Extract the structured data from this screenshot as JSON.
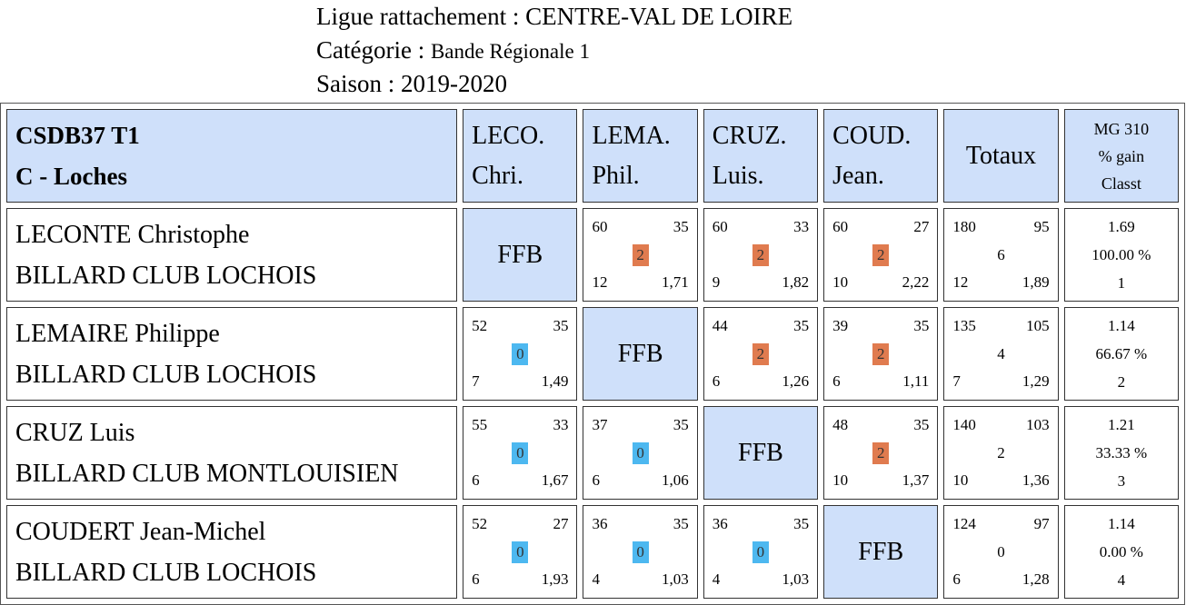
{
  "header": {
    "ligue": "Ligue rattachement : CENTRE-VAL DE LOIRE",
    "categorie_label": "Catégorie : ",
    "categorie_value": "Bande Régionale 1",
    "saison": "Saison : 2019-2020"
  },
  "table": {
    "team_line1": "CSDB37 T1",
    "team_line2": "C - Loches",
    "columns": [
      {
        "line1": "LECO.",
        "line2": "Chri."
      },
      {
        "line1": "LEMA.",
        "line2": "Phil."
      },
      {
        "line1": "CRUZ.",
        "line2": "Luis."
      },
      {
        "line1": "COUD.",
        "line2": "Jean."
      }
    ],
    "totaux_label": "Totaux",
    "mg_header": [
      "MG 310",
      "% gain",
      "Classt"
    ],
    "ffb_label": "FFB",
    "rows": [
      {
        "name": "LECONTE Christophe",
        "club": "BILLARD CLUB LOCHOIS",
        "cells": [
          null,
          {
            "tl": "60",
            "tr": "35",
            "mid": "2",
            "bl": "12",
            "br": "1,71"
          },
          {
            "tl": "60",
            "tr": "33",
            "mid": "2",
            "bl": "9",
            "br": "1,82"
          },
          {
            "tl": "60",
            "tr": "27",
            "mid": "2",
            "bl": "10",
            "br": "2,22"
          }
        ],
        "total": {
          "tl": "180",
          "tr": "95",
          "mid": "6",
          "bl": "12",
          "br": "1,89"
        },
        "mg": [
          "1.69",
          "100.00 %",
          "1"
        ]
      },
      {
        "name": "LEMAIRE Philippe",
        "club": "BILLARD CLUB LOCHOIS",
        "cells": [
          {
            "tl": "52",
            "tr": "35",
            "mid": "0",
            "bl": "7",
            "br": "1,49"
          },
          null,
          {
            "tl": "44",
            "tr": "35",
            "mid": "2",
            "bl": "6",
            "br": "1,26"
          },
          {
            "tl": "39",
            "tr": "35",
            "mid": "2",
            "bl": "6",
            "br": "1,11"
          }
        ],
        "total": {
          "tl": "135",
          "tr": "105",
          "mid": "4",
          "bl": "7",
          "br": "1,29"
        },
        "mg": [
          "1.14",
          "66.67 %",
          "2"
        ]
      },
      {
        "name": "CRUZ Luis",
        "club": "BILLARD CLUB MONTLOUISIEN",
        "cells": [
          {
            "tl": "55",
            "tr": "33",
            "mid": "0",
            "bl": "6",
            "br": "1,67"
          },
          {
            "tl": "37",
            "tr": "35",
            "mid": "0",
            "bl": "6",
            "br": "1,06"
          },
          null,
          {
            "tl": "48",
            "tr": "35",
            "mid": "2",
            "bl": "10",
            "br": "1,37"
          }
        ],
        "total": {
          "tl": "140",
          "tr": "103",
          "mid": "2",
          "bl": "10",
          "br": "1,36"
        },
        "mg": [
          "1.21",
          "33.33 %",
          "3"
        ]
      },
      {
        "name": "COUDERT Jean-Michel",
        "club": "BILLARD CLUB LOCHOIS",
        "cells": [
          {
            "tl": "52",
            "tr": "27",
            "mid": "0",
            "bl": "6",
            "br": "1,93"
          },
          {
            "tl": "36",
            "tr": "35",
            "mid": "0",
            "bl": "4",
            "br": "1,03"
          },
          {
            "tl": "36",
            "tr": "35",
            "mid": "0",
            "bl": "4",
            "br": "1,03"
          },
          null
        ],
        "total": {
          "tl": "124",
          "tr": "97",
          "mid": "0",
          "bl": "6",
          "br": "1,28"
        },
        "mg": [
          "1.14",
          "0.00 %",
          "4"
        ]
      }
    ],
    "colors": {
      "header_bg": "#cfe0fa",
      "win_badge": "#e07b4f",
      "loss_badge": "#4db8f0"
    }
  }
}
